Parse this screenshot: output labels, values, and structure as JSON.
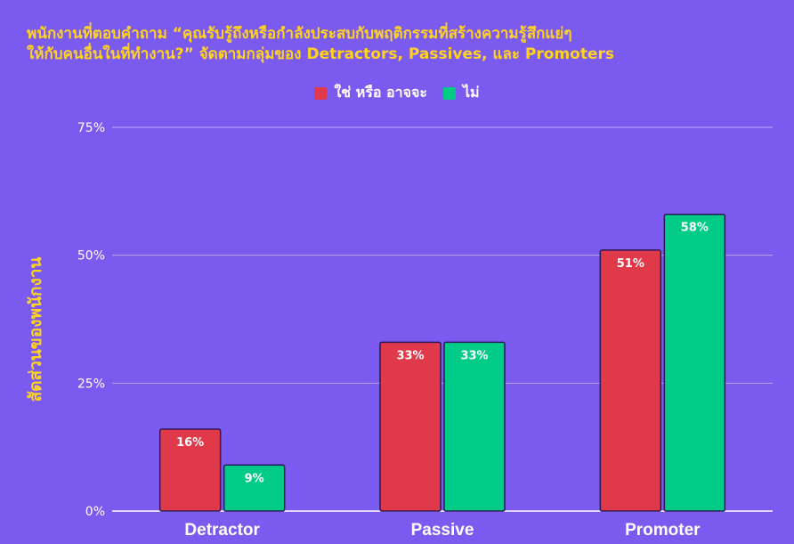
{
  "chart_data": {
    "type": "bar",
    "title_lines": [
      "พนักงานที่ตอบคำถาม “คุณรับรู้ถึงหรือกำลังประสบกับพฤติกรรมที่สร้างความรู้สึกแย่ๆ",
      "ให้กับคนอื่นในที่ทำงาน?” จัดตามกลุ่มของ Detractors, Passives, และ Promoters"
    ],
    "xlabel": "",
    "ylabel": "สัดส่วนของพนักงาน",
    "categories": [
      "Detractor",
      "Passive",
      "Promoter"
    ],
    "series": [
      {
        "name": "ใช่ หรือ อาจจะ",
        "color": "#e0394a",
        "values": [
          16,
          33,
          51
        ],
        "labels": [
          "16%",
          "33%",
          "51%"
        ]
      },
      {
        "name": "ไม่",
        "color": "#00cc88",
        "values": [
          9,
          33,
          58
        ],
        "labels": [
          "9%",
          "33%",
          "58%"
        ]
      }
    ],
    "ylim": [
      0,
      75
    ],
    "yticks": [
      0,
      25,
      50,
      75
    ],
    "ytick_labels": [
      "0%",
      "25%",
      "50%",
      "75%"
    ],
    "grid": true,
    "legend_position": "top-center"
  },
  "colors": {
    "background": "#7b5bef",
    "title": "#ffd21f",
    "grid": "#b9a9ff",
    "bar_outline": "#2a1758"
  }
}
